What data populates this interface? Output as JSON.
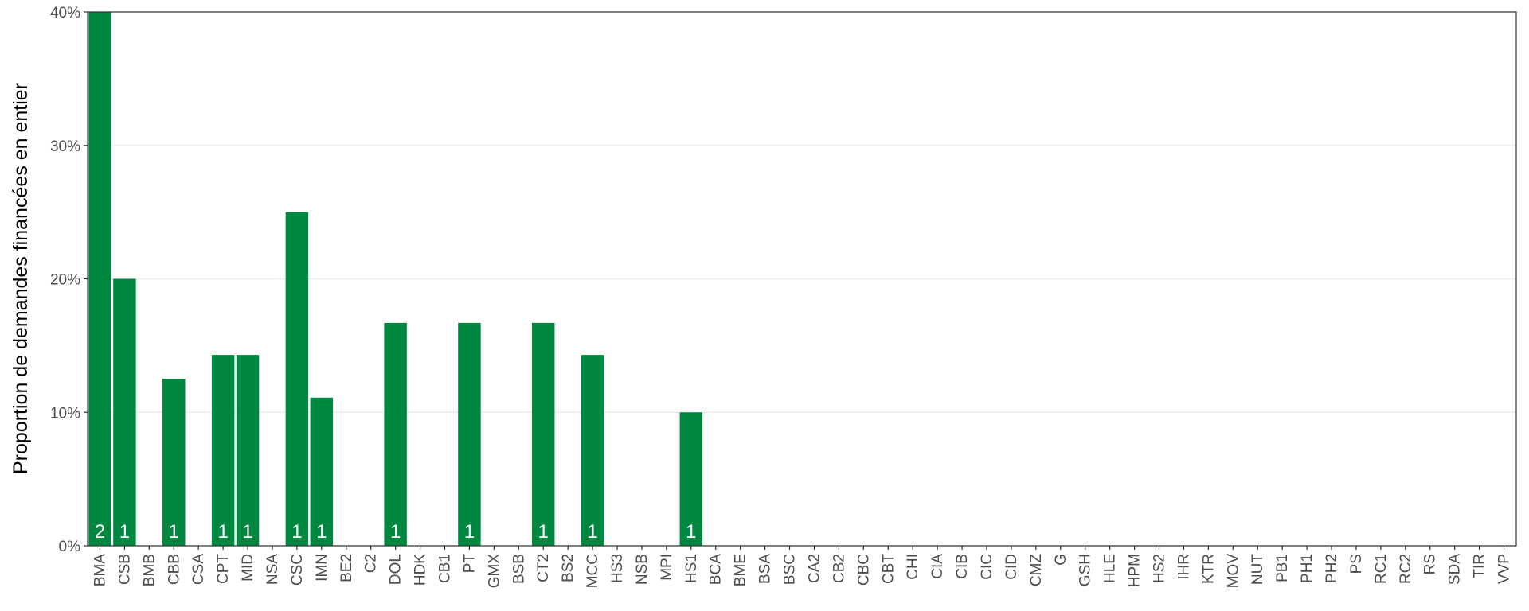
{
  "chart_data": {
    "type": "bar",
    "y_label": "Proportion de demandes financées en entier",
    "categories": [
      "BMA",
      "CSB",
      "BMB",
      "CBB",
      "CSA",
      "CPT",
      "MID",
      "NSA",
      "CSC",
      "IMN",
      "BE2",
      "C2",
      "DOL",
      "HDK",
      "CB1",
      "PT",
      "GMX",
      "BSB",
      "CT2",
      "BS2",
      "MCC",
      "HS3",
      "NSB",
      "MPI",
      "HS1",
      "BCA",
      "BME",
      "BSA",
      "BSC",
      "CA2",
      "CB2",
      "CBC",
      "CBT",
      "CHI",
      "CIA",
      "CIB",
      "CIC",
      "CID",
      "CMZ",
      "G",
      "GSH",
      "HLE",
      "HPM",
      "HS2",
      "IHR",
      "KTR",
      "MOV",
      "NUT",
      "PB1",
      "PH1",
      "PH2",
      "PS",
      "RC1",
      "RC2",
      "RS",
      "SDA",
      "TIR",
      "VVP"
    ],
    "values": [
      40,
      20,
      0,
      12.5,
      0,
      14.3,
      14.3,
      0,
      25,
      11.1,
      0,
      0,
      16.7,
      0,
      0,
      16.7,
      0,
      0,
      16.7,
      0,
      14.3,
      0,
      0,
      0,
      10,
      0,
      0,
      0,
      0,
      0,
      0,
      0,
      0,
      0,
      0,
      0,
      0,
      0,
      0,
      0,
      0,
      0,
      0,
      0,
      0,
      0,
      0,
      0,
      0,
      0,
      0,
      0,
      0,
      0,
      0,
      0,
      0,
      0
    ],
    "counts": [
      2,
      1,
      null,
      1,
      null,
      1,
      1,
      null,
      1,
      1,
      null,
      null,
      1,
      null,
      null,
      1,
      null,
      null,
      1,
      null,
      1,
      null,
      null,
      null,
      1,
      null,
      null,
      null,
      null,
      null,
      null,
      null,
      null,
      null,
      null,
      null,
      null,
      null,
      null,
      null,
      null,
      null,
      null,
      null,
      null,
      null,
      null,
      null,
      null,
      null,
      null,
      null,
      null,
      null,
      null,
      null,
      null,
      null
    ],
    "color": "#00873f",
    "ylim": [
      0,
      40
    ],
    "yticks": [
      {
        "value": 0,
        "label": "0%"
      },
      {
        "value": 10,
        "label": "10%"
      },
      {
        "value": 20,
        "label": "20%"
      },
      {
        "value": 30,
        "label": "30%"
      },
      {
        "value": 40,
        "label": "40%"
      }
    ],
    "grid": true
  }
}
